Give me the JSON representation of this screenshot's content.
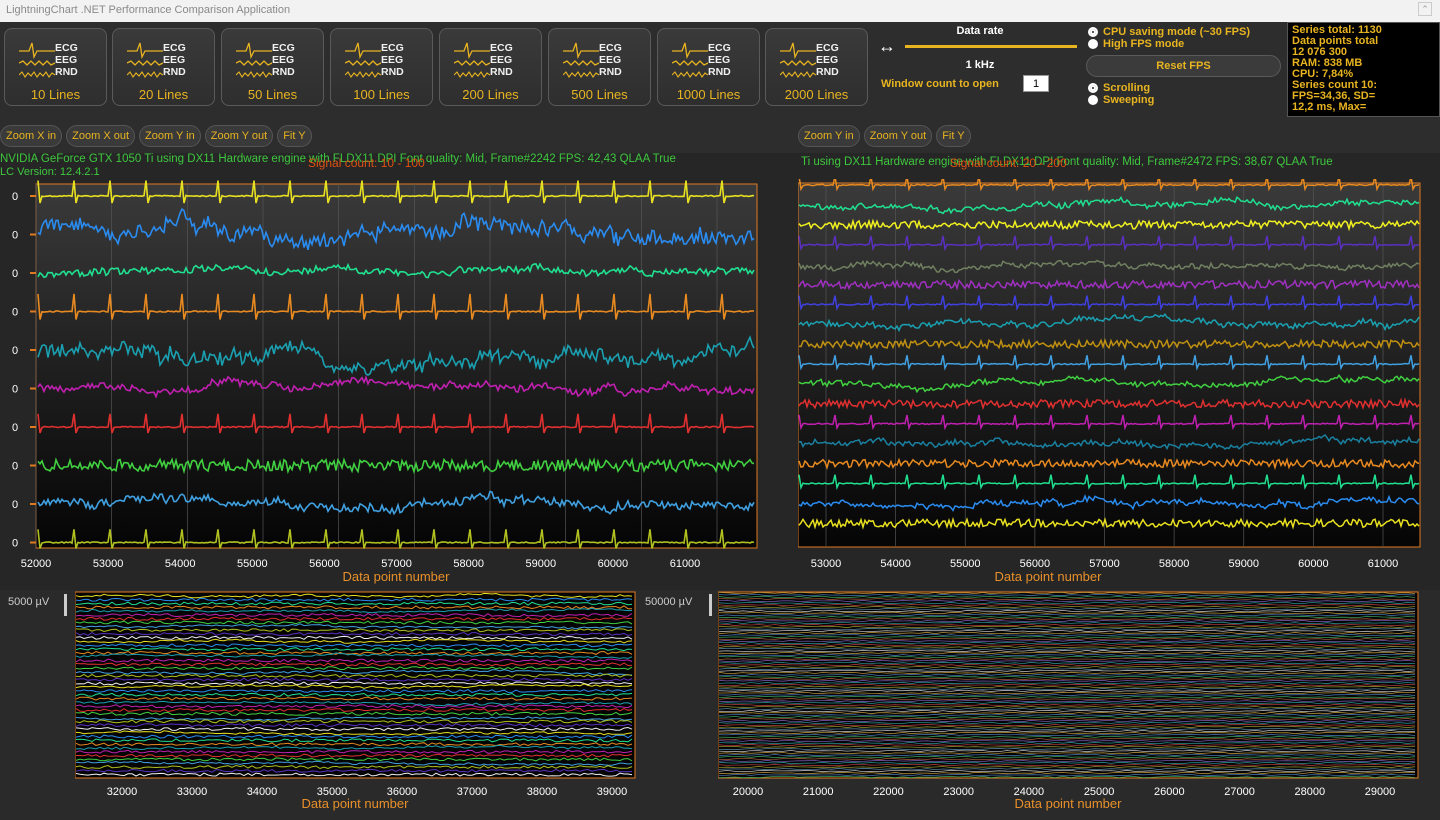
{
  "window": {
    "title": "LightningChart .NET Performance Comparison Application"
  },
  "toolbar": {
    "line_buttons": [
      {
        "sig1": "ECG",
        "sig2": "EEG",
        "sig3": "RND",
        "label": "10 Lines"
      },
      {
        "sig1": "ECG",
        "sig2": "EEG",
        "sig3": "RND",
        "label": "20 Lines"
      },
      {
        "sig1": "ECG",
        "sig2": "EEG",
        "sig3": "RND",
        "label": "50 Lines"
      },
      {
        "sig1": "ECG",
        "sig2": "EEG",
        "sig3": "RND",
        "label": "100 Lines"
      },
      {
        "sig1": "ECG",
        "sig2": "EEG",
        "sig3": "RND",
        "label": "200 Lines"
      },
      {
        "sig1": "ECG",
        "sig2": "EEG",
        "sig3": "RND",
        "label": "500 Lines"
      },
      {
        "sig1": "ECG",
        "sig2": "EEG",
        "sig3": "RND",
        "label": "1000 Lines"
      },
      {
        "sig1": "ECG",
        "sig2": "EEG",
        "sig3": "RND",
        "label": "2000 Lines"
      }
    ],
    "data_rate_label": "Data rate",
    "data_rate_value": "1 kHz",
    "window_count_label": "Window count to open",
    "window_count_value": "1",
    "cpu_saving_label": "CPU saving mode (~30 FPS)",
    "high_fps_label": "High FPS mode",
    "reset_fps_label": "Reset FPS",
    "scrolling_label": "Scrolling",
    "sweeping_label": "Sweeping"
  },
  "stats": {
    "lines": [
      "Series total: 1130",
      "Data points total",
      "12 076 300",
      "RAM: 838 MB",
      "CPU: 7,84%",
      "Series count  10:",
      "FPS=34,36, SD=",
      "12,2 ms, Max="
    ]
  },
  "zoom_left": [
    "Zoom X in",
    "Zoom X out",
    "Zoom Y in",
    "Zoom Y out",
    "Fit Y"
  ],
  "zoom_right": [
    "Zoom Y in",
    "Zoom Y out",
    "Fit Y"
  ],
  "charts": {
    "tl": {
      "info": "NVIDIA GeForce GTX 1050 Ti using DX11 Hardware engine with FLDX11 DPI Font quality: Mid, Frame#2242 FPS: 42,43 QLAA True",
      "info2": "LC Version: 12.4.2.1",
      "title": "Signal count: 10 - 100",
      "xlabel": "Data point number",
      "xticks": [
        "52000",
        "53000",
        "54000",
        "55000",
        "56000",
        "57000",
        "58000",
        "59000",
        "60000",
        "61000"
      ],
      "ytick": "0",
      "colors": [
        "#e8e020",
        "#2a8cf0",
        "#20e090",
        "#e88a20",
        "#1aa0b0",
        "#c020b0",
        "#e03030",
        "#40d040",
        "#40a0e0",
        "#b0c020"
      ]
    },
    "tr": {
      "info": "Ti using DX11 Hardware engine with FLDX11 DPI Font quality: Mid, Frame#2472 FPS: 38,67 QLAA True",
      "title": "Signal count: 20 - 200",
      "xlabel": "Data point number",
      "xticks": [
        "53000",
        "54000",
        "55000",
        "56000",
        "57000",
        "58000",
        "59000",
        "60000",
        "61000"
      ],
      "colors": [
        "#e88a20",
        "#20e090",
        "#f0f020",
        "#5a30c0",
        "#708060",
        "#a030c0",
        "#4040e0",
        "#1aa0b0",
        "#c09010",
        "#40a0e0",
        "#40d040",
        "#e03030",
        "#c020b0",
        "#1a80a0",
        "#e88a20",
        "#20e090",
        "#2a8cf0",
        "#e8e020"
      ]
    },
    "bl": {
      "yunit": "5000 µV",
      "xlabel": "Data point number",
      "xticks": [
        "32000",
        "33000",
        "34000",
        "35000",
        "36000",
        "37000",
        "38000",
        "39000"
      ]
    },
    "br": {
      "yunit": "50000 µV",
      "xlabel": "Data point number",
      "xticks": [
        "20000",
        "21000",
        "22000",
        "23000",
        "24000",
        "25000",
        "26000",
        "27000",
        "28000",
        "29000"
      ]
    }
  },
  "accent_color": "#e8b420"
}
